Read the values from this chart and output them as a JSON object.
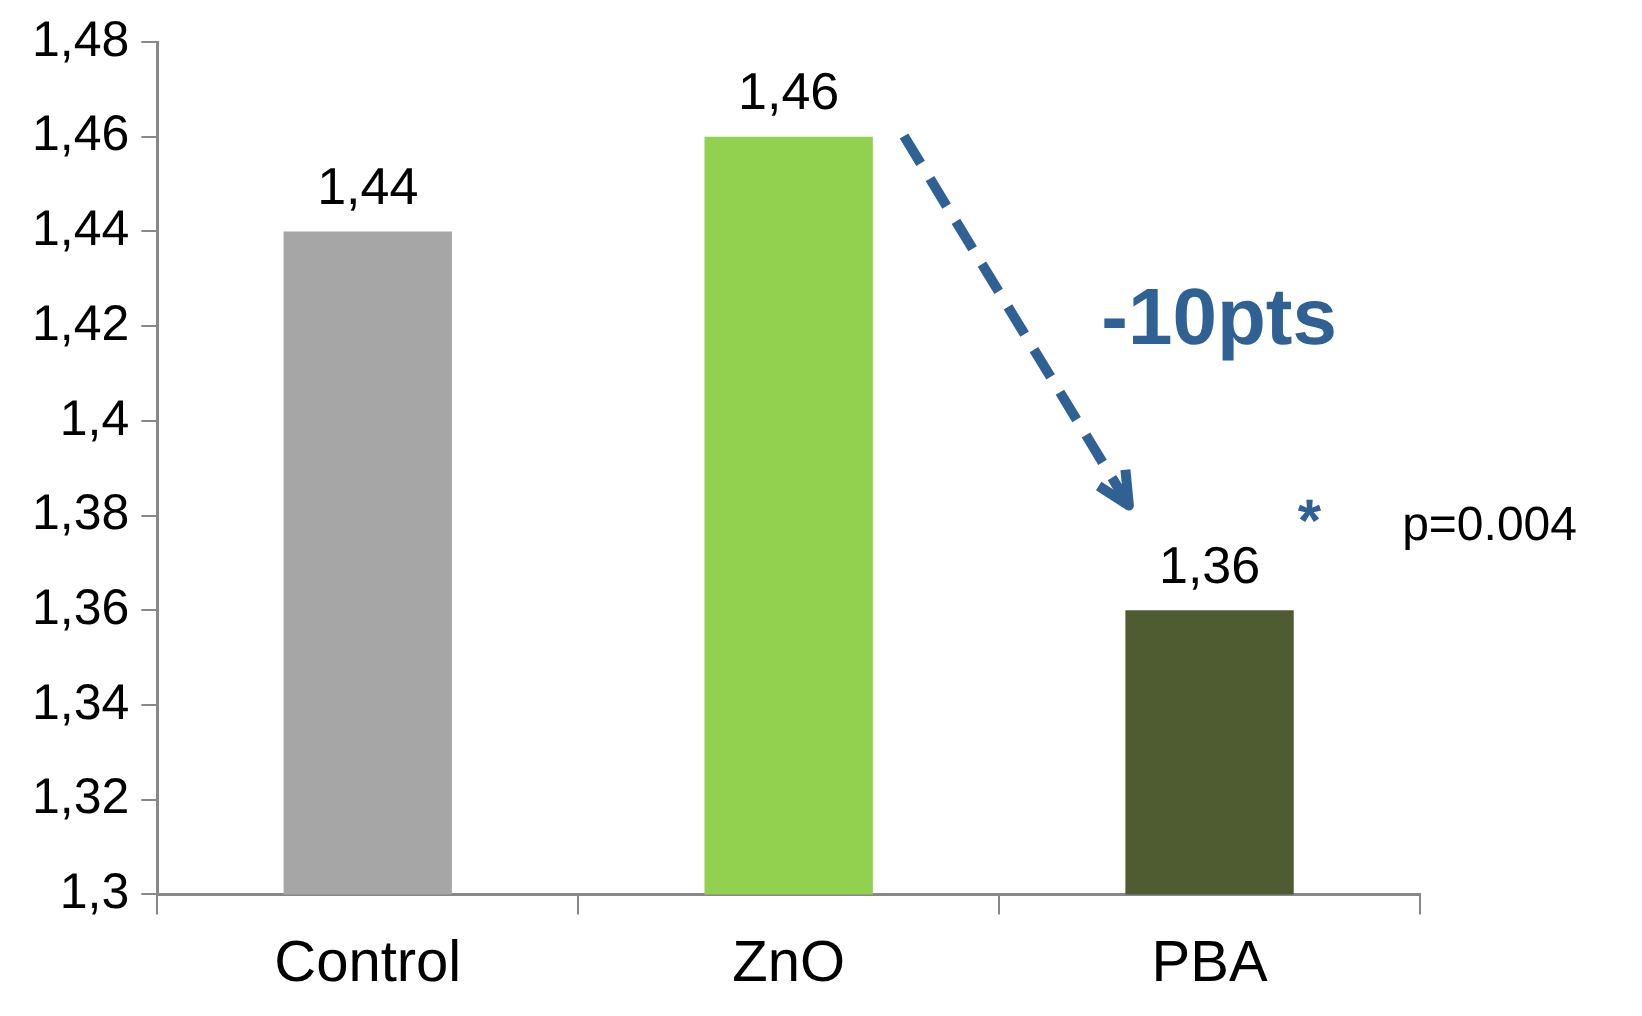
{
  "chart_data": {
    "type": "bar",
    "categories": [
      "Control",
      "ZnO",
      "PBA"
    ],
    "values": [
      1.44,
      1.46,
      1.36
    ],
    "colors": [
      "#a6a6a6",
      "#92d050",
      "#4f5b30"
    ],
    "value_labels": [
      "1,44",
      "1,46",
      "1,36"
    ],
    "ylim": [
      1.3,
      1.48
    ],
    "yticks": [
      {
        "value": 1.3,
        "label": "1,3"
      },
      {
        "value": 1.32,
        "label": "1,32"
      },
      {
        "value": 1.34,
        "label": "1,34"
      },
      {
        "value": 1.36,
        "label": "1,36"
      },
      {
        "value": 1.38,
        "label": "1,38"
      },
      {
        "value": 1.4,
        "label": "1,4"
      },
      {
        "value": 1.42,
        "label": "1,42"
      },
      {
        "value": 1.44,
        "label": "1,44"
      },
      {
        "value": 1.46,
        "label": "1,46"
      },
      {
        "value": 1.48,
        "label": "1,48"
      }
    ],
    "annotations": [
      "-10pts",
      "*",
      "p=0.004"
    ],
    "grid": false,
    "legend": false
  }
}
